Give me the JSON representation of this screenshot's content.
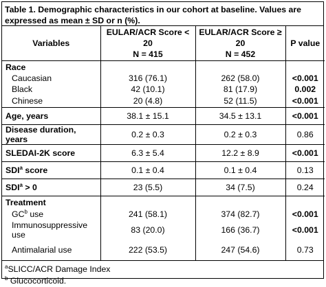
{
  "title": "Table 1. Demographic characteristics in our cohort at baseline. Values are expressed as mean ± SD or n (%).",
  "headers": {
    "variables": "Variables",
    "group1_line1": "EULAR/ACR Score < 20",
    "group1_line2": "N = 415",
    "group2_line1": "EULAR/ACR Score ≥ 20",
    "group2_line2": "N = 452",
    "pvalue": "P value"
  },
  "race": {
    "label": "Race",
    "rows": [
      {
        "label": "Caucasian",
        "g1": "316 (76.1)",
        "g2": "262 (58.0)",
        "p": "<0.001",
        "p_bold": true
      },
      {
        "label": "Black",
        "g1": "42 (10.1)",
        "g2": "81 (17.9)",
        "p": "0.002",
        "p_bold": true
      },
      {
        "label": "Chinese",
        "g1": "20 (4.8)",
        "g2": "52 (11.5)",
        "p": "<0.001",
        "p_bold": true
      }
    ]
  },
  "rows": [
    {
      "label": "Age, years",
      "g1": "38.1 ± 15.1",
      "g2": "34.5 ± 13.1",
      "p": "<0.001",
      "p_bold": true
    },
    {
      "label": "Disease duration, years",
      "g1": "0.2 ± 0.3",
      "g2": "0.2 ± 0.3",
      "p": "0.86",
      "p_bold": false
    },
    {
      "label": "SLEDAI-2K score",
      "g1": "6.3 ± 5.4",
      "g2": "12.2 ± 8.9",
      "p": "<0.001",
      "p_bold": true
    },
    {
      "label": "SDI",
      "sup": "a",
      "suffix": " score",
      "g1": "0.1 ± 0.4",
      "g2": "0.1 ± 0.4",
      "p": "0.13",
      "p_bold": false
    },
    {
      "label": "SDI",
      "sup": "a",
      "suffix": " > 0",
      "g1": "23 (5.5)",
      "g2": "34 (7.5)",
      "p": "0.24",
      "p_bold": false
    }
  ],
  "treatment": {
    "label": "Treatment",
    "rows": [
      {
        "label": "GC",
        "sup": "b",
        "suffix": " use",
        "g1": "241 (58.1)",
        "g2": "374 (82.7)",
        "p": "<0.001",
        "p_bold": true
      },
      {
        "label": "Immunosuppressive use",
        "sup": "",
        "suffix": "",
        "g1": "83 (20.0)",
        "g2": "166 (36.7)",
        "p": "<0.001",
        "p_bold": true
      },
      {
        "label": "Antimalarial use",
        "sup": "",
        "suffix": "",
        "g1": "222 (53.5)",
        "g2": "247 (54.6)",
        "p": "0.73",
        "p_bold": false
      }
    ]
  },
  "footnotes": [
    {
      "sup": "a",
      "text": "SLICC/ACR Damage Index"
    },
    {
      "sup": "b",
      "text": " Glucocorticoid."
    }
  ]
}
